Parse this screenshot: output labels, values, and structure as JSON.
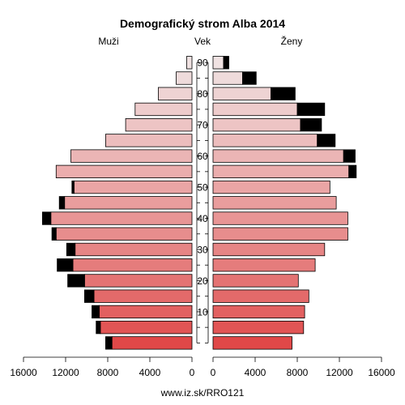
{
  "chart_data": {
    "type": "bar",
    "title": "Demografický strom Alba 2014",
    "male_label": "Muži",
    "age_label": "Vek",
    "female_label": "Ženy",
    "footer": "www.iz.sk/RRO121",
    "age_groups": [
      "0-4",
      "5-9",
      "10-14",
      "15-19",
      "20-24",
      "25-29",
      "30-34",
      "35-39",
      "40-44",
      "45-49",
      "50-54",
      "55-59",
      "60-64",
      "65-69",
      "70-74",
      "75-79",
      "80-84",
      "85-89",
      "90+"
    ],
    "age_ticks": [
      10,
      20,
      30,
      40,
      50,
      60,
      70,
      80,
      90
    ],
    "x_ticks": [
      16000,
      12000,
      8000,
      4000,
      0
    ],
    "x_max": 16000,
    "series": [
      {
        "name": "Muži",
        "values": [
          7600,
          8700,
          8800,
          9300,
          10200,
          11300,
          11100,
          12900,
          13400,
          12100,
          11200,
          12900,
          11500,
          8200,
          6300,
          5400,
          3200,
          1500,
          500
        ]
      },
      {
        "name": "Ženy",
        "values": [
          7500,
          8600,
          8700,
          9100,
          8100,
          9700,
          10600,
          12800,
          12800,
          11700,
          11100,
          12900,
          12400,
          9900,
          8300,
          8000,
          5500,
          2800,
          1000
        ]
      }
    ],
    "surplus": {
      "male": [
        600,
        400,
        700,
        900,
        1600,
        1500,
        800,
        400,
        800,
        500,
        200,
        0,
        0,
        0,
        0,
        0,
        0,
        0,
        0
      ],
      "female": [
        0,
        0,
        0,
        0,
        0,
        0,
        0,
        0,
        0,
        0,
        0,
        700,
        1100,
        1700,
        2000,
        2600,
        2300,
        1300,
        500
      ]
    },
    "colors": {
      "male_young": "#e04848",
      "male_old": "#f0e2e2",
      "female_young": "#e04848",
      "female_old": "#f0e2e2",
      "surplus": "#000000",
      "outline": "#000000"
    }
  }
}
